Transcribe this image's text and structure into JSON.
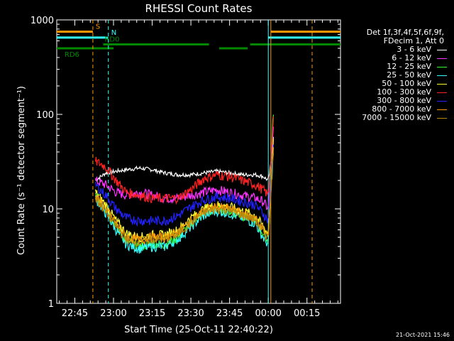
{
  "chart_data": {
    "type": "line",
    "title": "RHESSI Count Rates",
    "xlabel": "Start Time (25-Oct-11 22:40:22)",
    "ylabel": "Count Rate (s⁻¹ detector segment⁻¹)",
    "yscale": "log",
    "ylim": [
      1,
      1000
    ],
    "y_ticks": [
      "1",
      "10",
      "100",
      "1000"
    ],
    "x_tick_labels": [
      "22:45",
      "23:00",
      "23:15",
      "23:30",
      "23:45",
      "00:00",
      "00:15"
    ],
    "xlim_minutes": [
      -7,
      103
    ],
    "x_ticks_minutes": [
      0,
      15,
      30,
      45,
      60,
      75,
      90
    ],
    "legend_header": [
      "Det 1f,3f,4f,5f,6f,9f,",
      "FDecim 1, Att 0"
    ],
    "series": [
      {
        "name": "3 - 6 keV",
        "color": "#ffffff",
        "t": [
          8,
          12,
          16,
          20,
          25,
          30,
          35,
          40,
          45,
          50,
          55,
          60,
          65,
          70,
          73,
          75,
          76,
          77
        ],
        "v": [
          20,
          24,
          25,
          26,
          27,
          26,
          24,
          23,
          23,
          24,
          25,
          24,
          23,
          23,
          22,
          20,
          30,
          60
        ]
      },
      {
        "name": "6 - 12 keV",
        "color": "#ff33ff",
        "t": [
          8,
          12,
          16,
          20,
          25,
          30,
          35,
          40,
          45,
          50,
          55,
          60,
          65,
          70,
          73,
          75,
          76,
          77
        ],
        "v": [
          20,
          18,
          15,
          14,
          15,
          14,
          13,
          13,
          14,
          15,
          16,
          15,
          14,
          13,
          12,
          10,
          25,
          70
        ]
      },
      {
        "name": "12 - 25 keV",
        "color": "#33ff33",
        "t": [
          8,
          12,
          16,
          20,
          25,
          30,
          35,
          40,
          45,
          50,
          55,
          60,
          65,
          70,
          73,
          75,
          76,
          77
        ],
        "v": [
          14,
          10,
          6.5,
          4.5,
          4,
          4.3,
          4.2,
          5,
          7,
          9,
          10,
          9.5,
          8.5,
          7.5,
          5.5,
          4.5,
          30,
          110
        ]
      },
      {
        "name": "25 - 50 keV",
        "color": "#33ffff",
        "t": [
          8,
          12,
          16,
          20,
          25,
          30,
          35,
          40,
          45,
          50,
          55,
          60,
          65,
          70,
          73,
          75,
          76,
          77
        ],
        "v": [
          13,
          9,
          6,
          4.2,
          3.8,
          4,
          4,
          4.8,
          6.5,
          8.5,
          9.5,
          9,
          8,
          7,
          5,
          4.2,
          15,
          40
        ]
      },
      {
        "name": "50 - 100 keV",
        "color": "#ffff33",
        "t": [
          8,
          12,
          16,
          20,
          25,
          30,
          35,
          40,
          45,
          50,
          55,
          60,
          65,
          70,
          73,
          75,
          76,
          77
        ],
        "v": [
          15,
          11,
          7.5,
          5.5,
          5,
          5.3,
          5.3,
          6,
          8,
          10,
          11,
          10.5,
          9.5,
          8.5,
          6.5,
          5.5,
          20,
          50
        ]
      },
      {
        "name": "100 - 300 keV",
        "color": "#ff2222",
        "t": [
          8,
          12,
          16,
          20,
          25,
          30,
          35,
          40,
          45,
          50,
          55,
          60,
          65,
          70,
          73,
          75,
          76,
          77
        ],
        "v": [
          32,
          28,
          20,
          15,
          14,
          13,
          13,
          13,
          16,
          21,
          23,
          22,
          20,
          18,
          16,
          14,
          35,
          85
        ]
      },
      {
        "name": "300 - 800 keV",
        "color": "#2222ff",
        "t": [
          8,
          12,
          16,
          20,
          25,
          30,
          35,
          40,
          45,
          50,
          55,
          60,
          65,
          70,
          73,
          75,
          76,
          77
        ],
        "v": [
          18,
          14,
          10,
          8,
          7.5,
          7.5,
          7.5,
          8.5,
          10.5,
          12.5,
          13.5,
          13,
          12,
          11,
          9,
          7.5,
          20,
          45
        ]
      },
      {
        "name": "800 - 7000 keV",
        "color": "#ff9900",
        "t": [
          8,
          12,
          16,
          20,
          25,
          30,
          35,
          40,
          45,
          50,
          55,
          60,
          65,
          70,
          73,
          75,
          76,
          77
        ],
        "v": [
          14,
          10,
          7,
          5,
          4.7,
          5,
          5,
          5.7,
          7.5,
          9.5,
          10.5,
          10,
          9,
          8,
          6,
          5,
          18,
          45
        ]
      },
      {
        "name": "7000 - 15000 keV",
        "color": "#b8860b",
        "t": [
          8,
          12,
          16,
          20,
          25,
          30,
          35,
          40,
          45,
          50,
          55,
          60,
          65,
          70,
          73,
          75,
          76,
          77
        ],
        "v": [
          13,
          9.5,
          6.5,
          4.8,
          4.5,
          4.8,
          4.8,
          5.5,
          7.2,
          9.2,
          10,
          9.7,
          8.7,
          7.7,
          5.8,
          4.8,
          16,
          40
        ]
      }
    ],
    "attenuator_flags": [
      {
        "label": "S",
        "color": "#ff9900",
        "level": 750,
        "segments": [
          [
            -7,
            7
          ],
          [
            76,
            103
          ]
        ],
        "marker": 7
      },
      {
        "label": "N",
        "color": "#33ffff",
        "level": 650,
        "segments": [
          [
            -7,
            13
          ],
          [
            75,
            103
          ]
        ],
        "marker": 13
      },
      {
        "label": "RD0",
        "color": "#008800",
        "level": 550,
        "segments": [
          [
            11,
            52
          ],
          [
            68,
            103
          ]
        ]
      },
      {
        "label": "RD6",
        "color": "#008800",
        "level": 500,
        "segments": [
          [
            -7,
            7
          ],
          [
            7,
            15
          ],
          [
            56,
            67
          ]
        ]
      }
    ],
    "vertical_markers": [
      {
        "x": 7,
        "color": "#ff9900",
        "style": "dashed"
      },
      {
        "x": 13,
        "color": "#33ffff",
        "style": "dashed"
      },
      {
        "x": 75,
        "color": "#33ffff",
        "style": "solid"
      },
      {
        "x": 76,
        "color": "#ff9900",
        "style": "solid"
      },
      {
        "x": 92,
        "color": "#33ffff",
        "style": "dashed"
      },
      {
        "x": 92,
        "color": "#ff9900",
        "style": "dashed"
      }
    ]
  },
  "timestamp": "21-Oct-2021 15:46"
}
